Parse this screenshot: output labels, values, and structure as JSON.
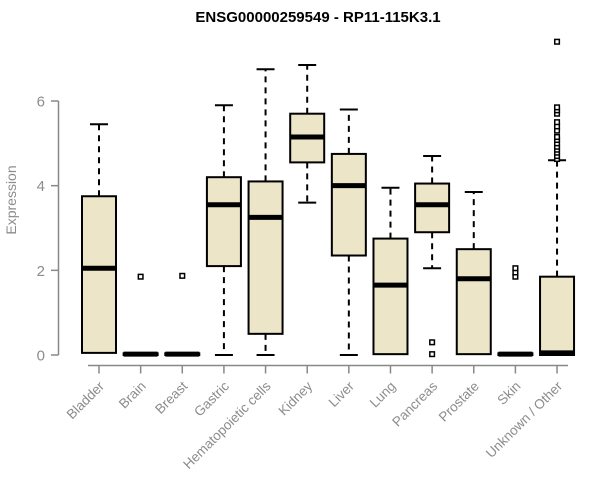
{
  "chart_data": {
    "type": "boxplot",
    "title": "ENSG00000259549 - RP11-115K3.1",
    "ylabel": "Expression",
    "xlabel": "",
    "yticks": [
      0,
      2,
      4,
      6
    ],
    "ylim": [
      0,
      7.5
    ],
    "grid": false,
    "legend": false,
    "categories": [
      "Bladder",
      "Brain",
      "Breast",
      "Gastric",
      "Hematopoietic cells",
      "Kidney",
      "Liver",
      "Lung",
      "Pancreas",
      "Prostate",
      "Skin",
      "Unknown / Other"
    ],
    "series": [
      {
        "category": "Bladder",
        "whisker_low": null,
        "q1": 0.05,
        "median": 2.05,
        "q3": 3.75,
        "whisker_high": 5.45,
        "outliers": []
      },
      {
        "category": "Brain",
        "whisker_low": null,
        "q1": 0,
        "median": 0.02,
        "q3": 0.04,
        "whisker_high": null,
        "outliers": [
          1.85
        ]
      },
      {
        "category": "Breast",
        "whisker_low": null,
        "q1": 0,
        "median": 0.02,
        "q3": 0.04,
        "whisker_high": null,
        "outliers": [
          1.87
        ]
      },
      {
        "category": "Gastric",
        "whisker_low": 0,
        "q1": 2.1,
        "median": 3.55,
        "q3": 4.2,
        "whisker_high": 5.9,
        "outliers": []
      },
      {
        "category": "Hematopoietic cells",
        "whisker_low": 0,
        "q1": 0.5,
        "median": 3.25,
        "q3": 4.1,
        "whisker_high": 6.75,
        "outliers": []
      },
      {
        "category": "Kidney",
        "whisker_low": 3.6,
        "q1": 4.55,
        "median": 5.15,
        "q3": 5.7,
        "whisker_high": 6.85,
        "outliers": []
      },
      {
        "category": "Liver",
        "whisker_low": 0,
        "q1": 2.35,
        "median": 4.0,
        "q3": 4.75,
        "whisker_high": 5.8,
        "outliers": []
      },
      {
        "category": "Lung",
        "whisker_low": null,
        "q1": 0.02,
        "median": 1.65,
        "q3": 2.75,
        "whisker_high": 3.95,
        "outliers": []
      },
      {
        "category": "Pancreas",
        "whisker_low": 2.05,
        "q1": 2.9,
        "median": 3.55,
        "q3": 4.05,
        "whisker_high": 4.7,
        "outliers": [
          0.3,
          0.02
        ]
      },
      {
        "category": "Prostate",
        "whisker_low": null,
        "q1": 0.02,
        "median": 1.8,
        "q3": 2.5,
        "whisker_high": 3.85,
        "outliers": []
      },
      {
        "category": "Skin",
        "whisker_low": null,
        "q1": 0,
        "median": 0.02,
        "q3": 0.04,
        "whisker_high": null,
        "outliers": [
          1.85,
          1.95,
          2.05
        ]
      },
      {
        "category": "Unknown / Other",
        "whisker_low": null,
        "q1": 0,
        "median": 0.05,
        "q3": 1.85,
        "whisker_high": 4.6,
        "outliers": [
          4.63,
          4.7,
          4.78,
          4.85,
          4.92,
          5.0,
          5.08,
          5.15,
          5.3,
          5.4,
          5.5,
          5.7,
          5.78,
          5.85,
          7.4
        ]
      }
    ],
    "colors": {
      "box_fill": "#ece5c8",
      "box_stroke": "#000000",
      "median": "#000000",
      "whisker": "#000000",
      "outlier_fill": "#ffffff",
      "outlier_stroke": "#000000",
      "axis": "#888888",
      "tick_label": "#8c8c8c",
      "title": "#000000",
      "background": "#ffffff"
    }
  }
}
